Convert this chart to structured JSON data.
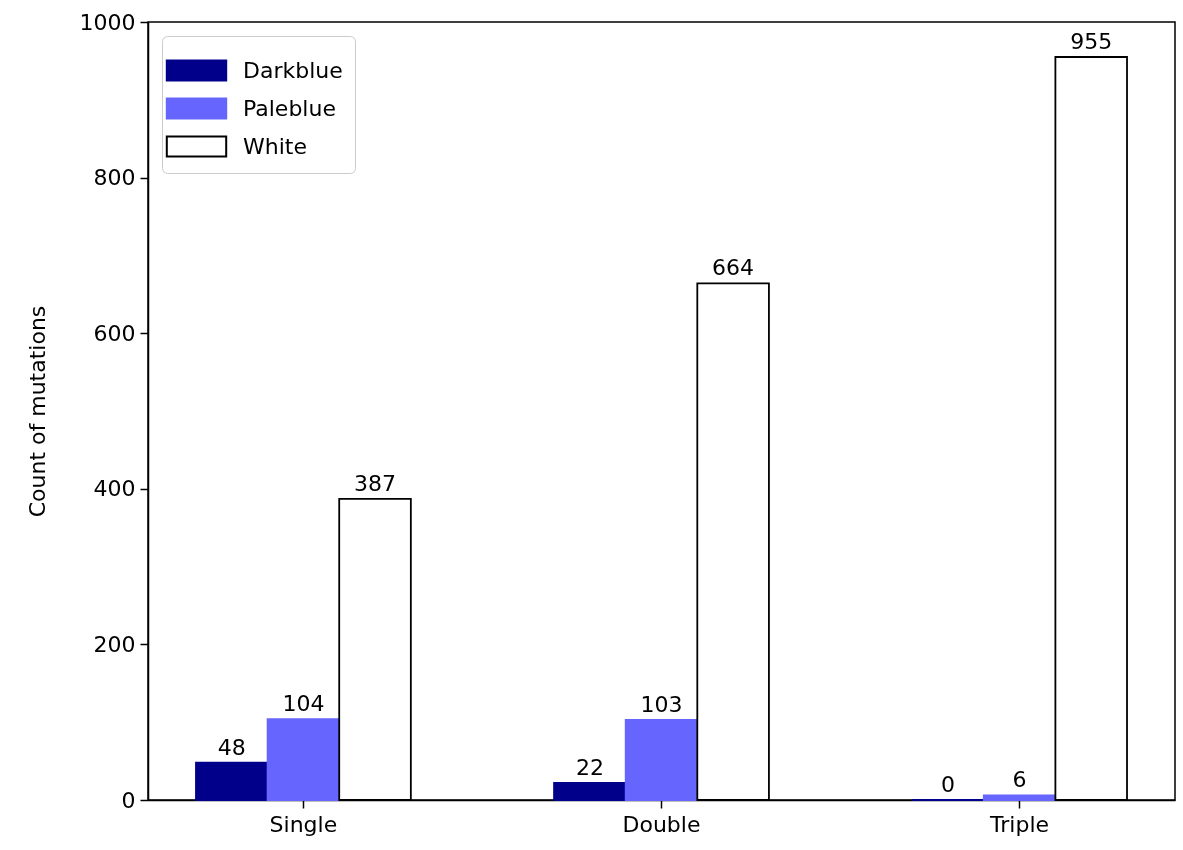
{
  "chart_data": {
    "type": "bar",
    "ylabel": "Count of mutations",
    "categories": [
      "Single",
      "Double",
      "Triple"
    ],
    "series": [
      {
        "name": "Darkblue",
        "color": "#00008b",
        "values": [
          48,
          22,
          0
        ]
      },
      {
        "name": "Paleblue",
        "color": "#6666ff",
        "values": [
          104,
          103,
          6
        ]
      },
      {
        "name": "White",
        "color": "#ffffff",
        "values": [
          387,
          664,
          955
        ]
      }
    ],
    "ylim": [
      0,
      1000
    ],
    "yticks": [
      0,
      200,
      400,
      600,
      800,
      {
        "value": 1000,
        "label": "1000"
      }
    ],
    "data_labels": true,
    "legend": "top left"
  }
}
